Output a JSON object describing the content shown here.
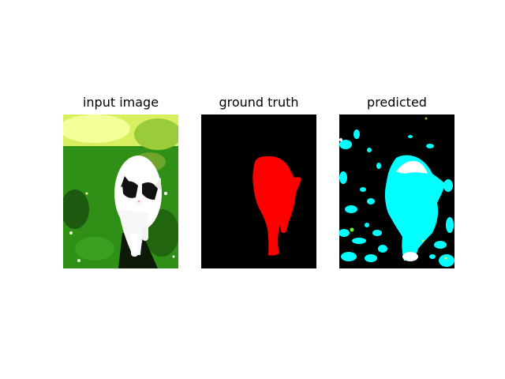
{
  "panels": [
    {
      "title": "input image"
    },
    {
      "title": "ground truth"
    },
    {
      "title": "predicted"
    }
  ],
  "colors": {
    "background": "#ffffff",
    "mask_background": "#000000",
    "ground_truth_cat": "#ff0000",
    "predicted_cat": "#00ffff",
    "predicted_other": "#ffffff",
    "grass": "#2e8b1a",
    "cat_fur": "#ffffff",
    "cat_dark_patch": "#111111"
  }
}
